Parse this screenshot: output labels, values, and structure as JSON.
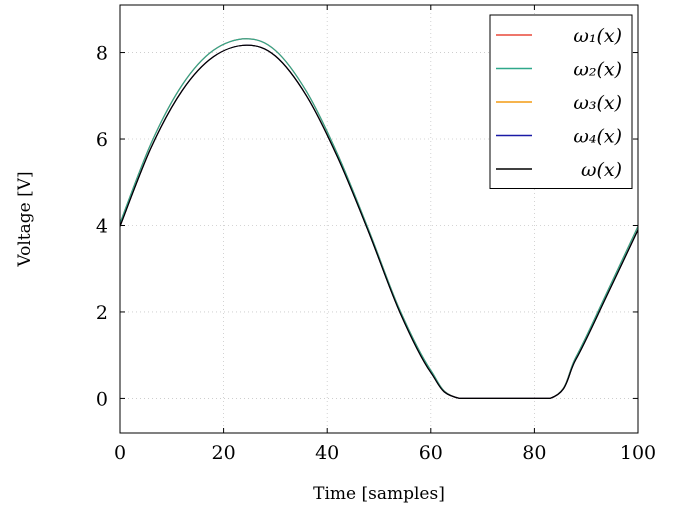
{
  "chart_data": {
    "type": "line",
    "xlabel": "Time [samples]",
    "ylabel": "Voltage [V]",
    "xlim": [
      0,
      100
    ],
    "ylim": [
      -0.8,
      9.1
    ],
    "xticks": [
      0,
      20,
      40,
      60,
      80,
      100
    ],
    "yticks": [
      0,
      2,
      4,
      6,
      8
    ],
    "grid": true,
    "legend_position": "top-right",
    "series": [
      {
        "name": "ω₁(x)",
        "color": "#e8483a",
        "x": [
          0,
          6,
          12,
          18,
          24.4,
          30,
          36,
          42,
          48,
          54,
          60,
          65.6,
          83,
          88,
          94,
          100
        ],
        "y": [
          4.05,
          5.9,
          7.25,
          8.05,
          8.32,
          8.05,
          7.1,
          5.65,
          3.9,
          2.05,
          0.65,
          0.0,
          0.0,
          0.95,
          2.45,
          3.98
        ]
      },
      {
        "name": "ω₂(x)",
        "color": "#2fa88a",
        "x": [
          0,
          6,
          12,
          18,
          24.4,
          30,
          36,
          42,
          48,
          54,
          60,
          65.6,
          83,
          88,
          94,
          100
        ],
        "y": [
          4.05,
          5.9,
          7.25,
          8.05,
          8.32,
          8.05,
          7.1,
          5.65,
          3.9,
          2.05,
          0.65,
          0.0,
          0.0,
          0.95,
          2.45,
          3.98
        ]
      },
      {
        "name": "ω₃(x)",
        "color": "#f39c12",
        "x": [
          0,
          6,
          12,
          18,
          24.4,
          30,
          36,
          42,
          48,
          54,
          60,
          65.6,
          83,
          88,
          94,
          100
        ],
        "y": [
          3.98,
          5.8,
          7.12,
          7.9,
          8.17,
          7.92,
          7.0,
          5.58,
          3.85,
          2.0,
          0.6,
          0.0,
          0.0,
          0.9,
          2.38,
          3.9
        ]
      },
      {
        "name": "ω₄(x)",
        "color": "#1a1aa6",
        "x": [
          0,
          6,
          12,
          18,
          24.4,
          30,
          36,
          42,
          48,
          54,
          60,
          65.6,
          83,
          88,
          94,
          100
        ],
        "y": [
          3.98,
          5.8,
          7.12,
          7.9,
          8.17,
          7.92,
          7.0,
          5.58,
          3.85,
          2.0,
          0.6,
          0.0,
          0.0,
          0.9,
          2.38,
          3.9
        ]
      },
      {
        "name": "ω(x)",
        "color": "#000000",
        "x": [
          0,
          6,
          12,
          18,
          24.4,
          30,
          36,
          42,
          48,
          54,
          60,
          65.6,
          83,
          88,
          94,
          100
        ],
        "y": [
          3.98,
          5.8,
          7.12,
          7.9,
          8.17,
          7.92,
          7.0,
          5.58,
          3.85,
          2.0,
          0.6,
          0.0,
          0.0,
          0.9,
          2.38,
          3.9
        ]
      }
    ]
  }
}
